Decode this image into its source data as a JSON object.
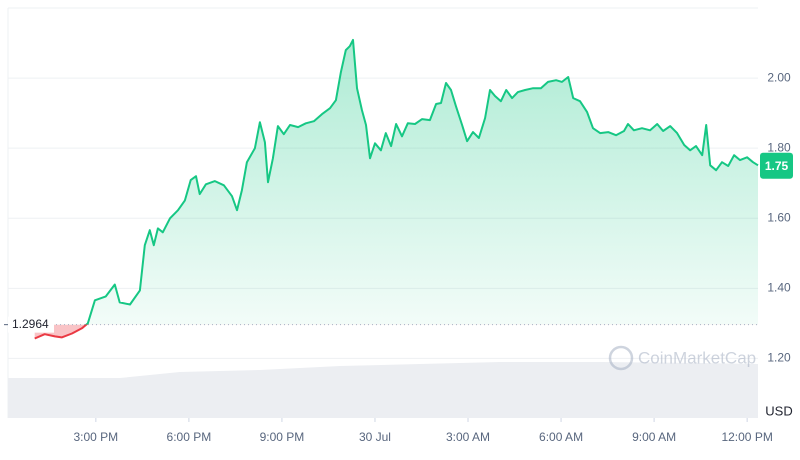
{
  "chart_data": {
    "type": "line",
    "x": [
      13.03,
      13.35,
      13.68,
      13.9,
      14.23,
      14.55,
      14.74,
      14.97,
      15.32,
      15.61,
      15.77,
      16.1,
      16.42,
      16.58,
      16.74,
      16.87,
      17.0,
      17.16,
      17.39,
      17.65,
      17.87,
      18.06,
      18.23,
      18.35,
      18.55,
      18.84,
      19.13,
      19.39,
      19.55,
      19.71,
      19.87,
      20.13,
      20.29,
      20.45,
      20.55,
      20.71,
      20.87,
      21.06,
      21.26,
      21.52,
      21.77,
      22.03,
      22.29,
      22.55,
      22.74,
      22.9,
      23.06,
      23.19,
      23.29,
      23.42,
      23.58,
      23.71,
      23.84,
      24.0,
      24.19,
      24.35,
      24.52,
      24.68,
      24.87,
      25.06,
      25.29,
      25.52,
      25.77,
      25.97,
      26.13,
      26.29,
      26.45,
      26.61,
      26.81,
      26.97,
      27.16,
      27.35,
      27.55,
      27.71,
      27.87,
      28.06,
      28.23,
      28.42,
      28.61,
      28.84,
      29.1,
      29.35,
      29.58,
      29.84,
      30.03,
      30.23,
      30.39,
      30.61,
      30.84,
      31.03,
      31.26,
      31.52,
      31.77,
      32.03,
      32.16,
      32.35,
      32.61,
      32.87,
      33.1,
      33.29,
      33.52,
      33.74,
      33.97,
      34.16,
      34.35,
      34.55,
      34.68,
      34.81,
      35.0,
      35.19,
      35.39,
      35.58,
      35.77,
      36.0,
      36.19,
      36.35
    ],
    "values": [
      1.257,
      1.269,
      1.263,
      1.26,
      1.271,
      1.286,
      1.3,
      1.366,
      1.377,
      1.411,
      1.36,
      1.354,
      1.394,
      1.523,
      1.566,
      1.523,
      1.571,
      1.56,
      1.6,
      1.623,
      1.651,
      1.709,
      1.72,
      1.669,
      1.697,
      1.706,
      1.694,
      1.663,
      1.623,
      1.68,
      1.76,
      1.8,
      1.874,
      1.817,
      1.703,
      1.771,
      1.863,
      1.84,
      1.866,
      1.86,
      1.871,
      1.877,
      1.897,
      1.914,
      1.937,
      2.017,
      2.08,
      2.091,
      2.109,
      1.971,
      1.909,
      1.866,
      1.771,
      1.814,
      1.794,
      1.843,
      1.806,
      1.869,
      1.834,
      1.871,
      1.869,
      1.883,
      1.88,
      1.926,
      1.929,
      1.986,
      1.966,
      1.92,
      1.866,
      1.82,
      1.846,
      1.829,
      1.886,
      1.966,
      1.949,
      1.934,
      1.966,
      1.943,
      1.96,
      1.966,
      1.971,
      1.971,
      1.989,
      1.994,
      1.989,
      2.003,
      1.943,
      1.934,
      1.903,
      1.857,
      1.843,
      1.846,
      1.837,
      1.849,
      1.869,
      1.851,
      1.857,
      1.851,
      1.869,
      1.849,
      1.863,
      1.843,
      1.809,
      1.794,
      1.806,
      1.78,
      1.866,
      1.751,
      1.737,
      1.76,
      1.749,
      1.78,
      1.766,
      1.774,
      1.76,
      1.751
    ],
    "color": "#16c784",
    "down_color": "#ea3943",
    "baseline": 1.2964,
    "last_value": 1.75,
    "xlim": [
      12.2,
      36.35
    ],
    "xticks": [
      {
        "value": 15,
        "label": "3:00 PM"
      },
      {
        "value": 18,
        "label": "6:00 PM"
      },
      {
        "value": 21,
        "label": "9:00 PM"
      },
      {
        "value": 24,
        "label": "30 Jul"
      },
      {
        "value": 27,
        "label": "3:00 AM"
      },
      {
        "value": 30,
        "label": "6:00 AM"
      },
      {
        "value": 33,
        "label": "9:00 AM"
      },
      {
        "value": 36,
        "label": "12:00 PM"
      }
    ],
    "ylim": [
      1.03,
      2.2
    ],
    "yticks": [
      {
        "value": 1.2,
        "label": "1.20"
      },
      {
        "value": 1.4,
        "label": "1.40"
      },
      {
        "value": 1.6,
        "label": "1.60"
      },
      {
        "value": 1.8,
        "label": "1.80"
      },
      {
        "value": 2.0,
        "label": "2.00"
      }
    ],
    "y_unit": "USD",
    "watermark": "CoinMarketCap",
    "grid": true
  }
}
